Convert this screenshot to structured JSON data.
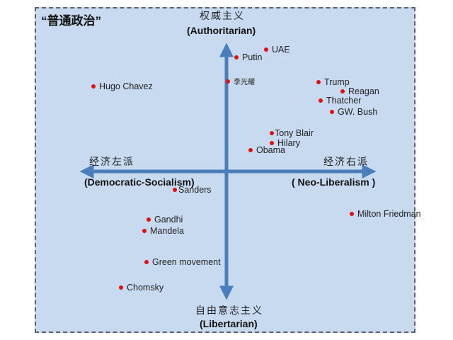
{
  "title": "“普通政治”",
  "axes": {
    "top_cn": "权威主义",
    "top_en": "(Authoritarian)",
    "bottom_cn": "自由意志主义",
    "bottom_en": "(Libertarian)",
    "left_cn": "经济左派",
    "left_en": "(Democratic-Socialism)",
    "right_cn": "经济右派",
    "right_en": "( Neo-Liberalism )",
    "arrow_color": "#4a7ebb"
  },
  "dot_color": "#e01010",
  "points": [
    {
      "label": "UAE"
    },
    {
      "label": "Putin"
    },
    {
      "label": "李光耀"
    },
    {
      "label": "Hugo Chavez"
    },
    {
      "label": "Trump"
    },
    {
      "label": "Reagan"
    },
    {
      "label": "Thatcher"
    },
    {
      "label": "GW. Bush"
    },
    {
      "label": "Tony Blair"
    },
    {
      "label": "Hilary"
    },
    {
      "label": "Obama"
    },
    {
      "label": "Sanders"
    },
    {
      "label": "Milton Friedman"
    },
    {
      "label": "Gandhi"
    },
    {
      "label": "Mandela"
    },
    {
      "label": "Green movement"
    },
    {
      "label": "Chomsky"
    }
  ]
}
